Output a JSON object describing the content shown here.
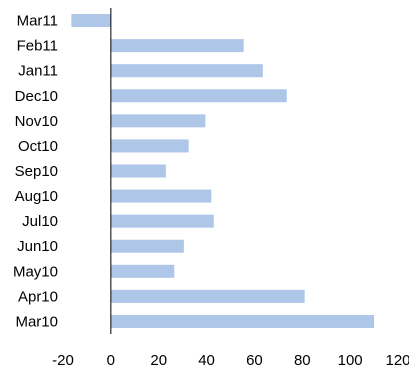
{
  "chart_data": {
    "type": "bar",
    "orientation": "horizontal",
    "categories": [
      "Mar10",
      "Apr10",
      "May10",
      "Jun10",
      "Jul10",
      "Aug10",
      "Sep10",
      "Oct10",
      "Nov10",
      "Dec10",
      "Jan11",
      "Feb11",
      "Mar11"
    ],
    "values": [
      110,
      81,
      26.5,
      30.5,
      43,
      42,
      23,
      32.5,
      39.5,
      73.5,
      63.5,
      55.5,
      -16.5
    ],
    "title": "",
    "xlabel": "",
    "ylabel": "",
    "xlim": [
      -20,
      120
    ],
    "x_ticks": [
      -20,
      0,
      20,
      40,
      60,
      80,
      100,
      120
    ],
    "x_tick_labels": [
      "-20",
      "0",
      "20",
      "40",
      "60",
      "80",
      "100",
      "120"
    ],
    "grid": false,
    "legend": "none",
    "bar_color": "#aec6e8",
    "axis_color": "#000000"
  }
}
